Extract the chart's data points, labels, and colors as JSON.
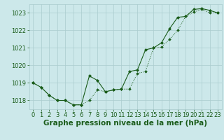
{
  "xlabel": "Graphe pression niveau de la mer (hPa)",
  "background_color": "#cce8ea",
  "grid_color": "#aaccce",
  "line_color": "#1a5c1a",
  "text_color": "#1a5c1a",
  "ylim": [
    1017.5,
    1023.5
  ],
  "xlim": [
    -0.5,
    23.5
  ],
  "yticks": [
    1018,
    1019,
    1020,
    1021,
    1022,
    1023
  ],
  "xticks": [
    0,
    1,
    2,
    3,
    4,
    5,
    6,
    7,
    8,
    9,
    10,
    11,
    12,
    13,
    14,
    15,
    16,
    17,
    18,
    19,
    20,
    21,
    22,
    23
  ],
  "series1_x": [
    0,
    1,
    2,
    3,
    4,
    5,
    6,
    7,
    8,
    9,
    10,
    11,
    12,
    13,
    14,
    15,
    16,
    17,
    18,
    19,
    20,
    21,
    22,
    23
  ],
  "series1_y": [
    1019.0,
    1018.75,
    1018.3,
    1018.0,
    1018.0,
    1017.75,
    1017.75,
    1018.0,
    1018.6,
    1018.5,
    1018.6,
    1018.65,
    1018.65,
    1019.55,
    1019.65,
    1021.0,
    1021.05,
    1021.5,
    1022.0,
    1022.8,
    1023.05,
    1023.2,
    1023.0,
    1023.0
  ],
  "series2_x": [
    0,
    1,
    2,
    3,
    4,
    5,
    6,
    7,
    8,
    9,
    10,
    11,
    12,
    13,
    14,
    15,
    16,
    17,
    18,
    19,
    20,
    21,
    22,
    23
  ],
  "series2_y": [
    1019.0,
    1018.75,
    1018.3,
    1018.0,
    1018.0,
    1017.75,
    1017.75,
    1019.4,
    1019.15,
    1018.5,
    1018.6,
    1018.65,
    1019.65,
    1019.75,
    1020.9,
    1021.0,
    1021.3,
    1022.1,
    1022.75,
    1022.8,
    1023.2,
    1023.25,
    1023.15,
    1023.0
  ],
  "xlabel_fontsize": 7.5,
  "tick_fontsize": 6.0,
  "figsize": [
    3.2,
    2.0
  ],
  "dpi": 100
}
